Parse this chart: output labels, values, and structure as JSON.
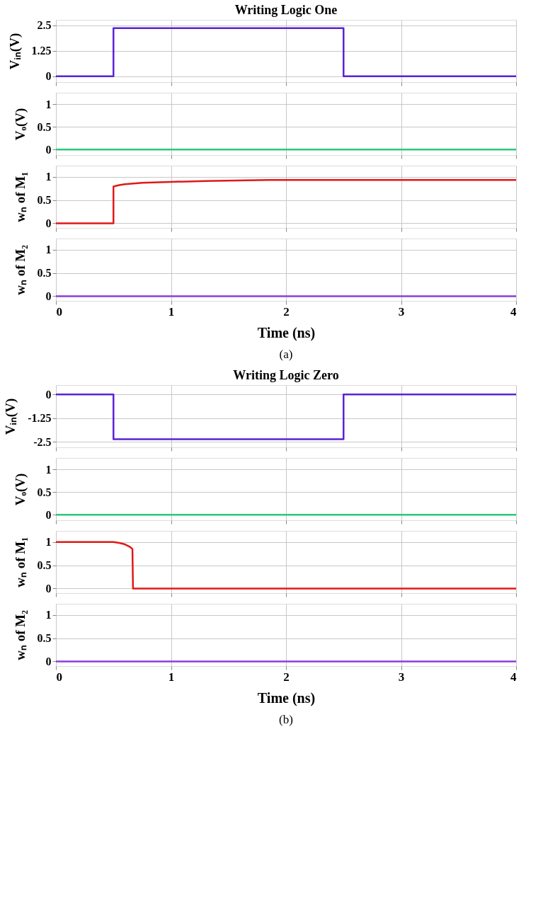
{
  "chart_data": [
    {
      "type": "line",
      "title": "Writing Logic One",
      "ylabel": "Vᵢₙ(V)",
      "x": [
        0,
        0.5,
        0.5,
        2.5,
        2.5,
        4
      ],
      "values": [
        0,
        0,
        2.35,
        2.35,
        0,
        0
      ],
      "color": "#5b22d6",
      "xlim": [
        0,
        4
      ],
      "xticks": [
        0,
        1,
        2,
        3,
        4
      ],
      "ylim": [
        -0.29,
        2.76
      ],
      "yticks": [
        0,
        1.25,
        2.5
      ],
      "grid": true,
      "tick_labels": "y"
    },
    {
      "type": "line",
      "ylabel": "Vₒ(V)",
      "x": [
        0,
        4
      ],
      "values": [
        0,
        0
      ],
      "color": "#2bc77e",
      "xlim": [
        0,
        4
      ],
      "xticks": [
        0,
        1,
        2,
        3,
        4
      ],
      "ylim": [
        -0.12,
        1.25
      ],
      "yticks": [
        0,
        0.5,
        1
      ],
      "grid": true,
      "tick_labels": "y"
    },
    {
      "type": "line",
      "ylabel": "wₙ of M₁",
      "x": [
        0,
        0.5,
        0.5,
        0.55,
        0.6,
        0.75,
        1.0,
        1.3,
        1.85,
        4
      ],
      "values": [
        0,
        0,
        0.79,
        0.82,
        0.84,
        0.87,
        0.89,
        0.91,
        0.93,
        0.93
      ],
      "color": "#e01818",
      "xlim": [
        0,
        4
      ],
      "xticks": [
        0,
        1,
        2,
        3,
        4
      ],
      "ylim": [
        -0.1,
        1.24
      ],
      "yticks": [
        0,
        0.5,
        1
      ],
      "grid": true,
      "tick_labels": "y"
    },
    {
      "type": "line",
      "ylabel": "wₙ of M₂",
      "xlabel": "Time (ns)",
      "x": [
        0,
        4
      ],
      "values": [
        0,
        0
      ],
      "color": "#8a3ed8",
      "xlim": [
        0,
        4
      ],
      "xticks": [
        0,
        1,
        2,
        3,
        4
      ],
      "ylim": [
        -0.1,
        1.24
      ],
      "yticks": [
        0,
        0.5,
        1
      ],
      "grid": true,
      "annotations": [
        "(a)"
      ]
    },
    {
      "type": "line",
      "title": "Writing Logic Zero",
      "ylabel": "Vᵢₙ(V)",
      "x": [
        0,
        0.5,
        0.5,
        2.5,
        2.5,
        4
      ],
      "values": [
        0,
        0,
        -2.35,
        -2.35,
        0,
        0
      ],
      "color": "#5b22d6",
      "xlim": [
        0,
        4
      ],
      "xticks": [
        0,
        1,
        2,
        3,
        4
      ],
      "ylim": [
        -2.78,
        0.49
      ],
      "yticks": [
        -2.5,
        -1.25,
        0
      ],
      "grid": true,
      "tick_labels": "y"
    },
    {
      "type": "line",
      "ylabel": "Vₒ(V)",
      "x": [
        0,
        4
      ],
      "values": [
        0,
        0
      ],
      "color": "#2bc77e",
      "xlim": [
        0,
        4
      ],
      "xticks": [
        0,
        1,
        2,
        3,
        4
      ],
      "ylim": [
        -0.12,
        1.25
      ],
      "yticks": [
        0,
        0.5,
        1
      ],
      "grid": true,
      "tick_labels": "y"
    },
    {
      "type": "line",
      "ylabel": "wₙ of M₁",
      "x": [
        0,
        0.5,
        0.55,
        0.6,
        0.64,
        0.665,
        0.67,
        4
      ],
      "values": [
        1,
        1,
        0.98,
        0.95,
        0.9,
        0.85,
        0,
        0
      ],
      "color": "#e01818",
      "xlim": [
        0,
        4
      ],
      "xticks": [
        0,
        1,
        2,
        3,
        4
      ],
      "ylim": [
        -0.1,
        1.24
      ],
      "yticks": [
        0,
        0.5,
        1
      ],
      "grid": true,
      "tick_labels": "y"
    },
    {
      "type": "line",
      "ylabel": "wₙ of M₂",
      "xlabel": "Time (ns)",
      "x": [
        0,
        4
      ],
      "values": [
        0,
        0
      ],
      "color": "#8a3ed8",
      "xlim": [
        0,
        4
      ],
      "xticks": [
        0,
        1,
        2,
        3,
        4
      ],
      "ylim": [
        -0.1,
        1.24
      ],
      "yticks": [
        0,
        0.5,
        1
      ],
      "grid": true,
      "annotations": [
        "(b)"
      ]
    }
  ]
}
